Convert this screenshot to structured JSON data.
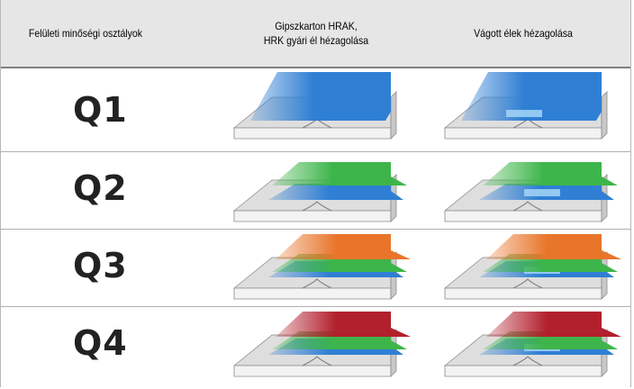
{
  "header": {
    "col1": "Felületi minőségi osztályok",
    "col2_line1": "Gipszkarton HRAK,",
    "col2_line2": "HRK gyári él hézagolása",
    "col3": "Vágott élek hézagolása"
  },
  "rows": [
    {
      "label": "Q1",
      "layers": [
        "blue"
      ]
    },
    {
      "label": "Q2",
      "layers": [
        "blue",
        "green"
      ]
    },
    {
      "label": "Q3",
      "layers": [
        "blue",
        "green",
        "orange"
      ]
    },
    {
      "label": "Q4",
      "layers": [
        "blue",
        "green",
        "red"
      ]
    }
  ],
  "colors": {
    "board": "#dedede",
    "blue": "#2f7fd4",
    "green": "#3db54a",
    "orange": "#e8752a",
    "red": "#b21f2d",
    "header_bg": "#e6e6e6"
  }
}
